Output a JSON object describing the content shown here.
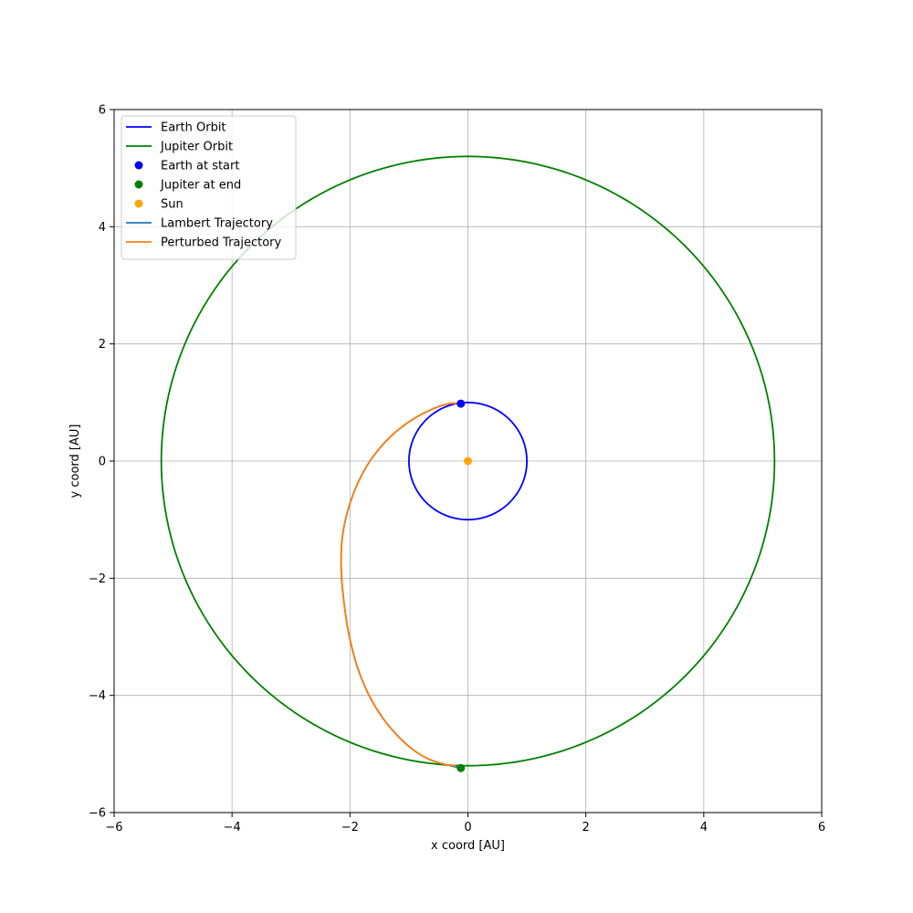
{
  "chart_data": {
    "type": "line",
    "xlabel": "x coord [AU]",
    "ylabel": "y coord [AU]",
    "xlim": [
      -6,
      6
    ],
    "ylim": [
      -6,
      6
    ],
    "grid": true,
    "legend_position": "top-left",
    "x_ticks": [
      -6,
      -4,
      -2,
      0,
      2,
      4,
      6
    ],
    "y_ticks": [
      -6,
      -4,
      -2,
      0,
      2,
      4,
      6
    ],
    "x_tick_labels": [
      "−6",
      "−4",
      "−2",
      "0",
      "2",
      "4",
      "6"
    ],
    "y_tick_labels": [
      "−6",
      "−4",
      "−2",
      "0",
      "2",
      "4",
      "6"
    ],
    "series": [
      {
        "name": "Earth Orbit",
        "kind": "line",
        "color": "#0000ff",
        "shape": "circle",
        "center": [
          0,
          0
        ],
        "radius": 1.0
      },
      {
        "name": "Jupiter Orbit",
        "kind": "line",
        "color": "#008000",
        "shape": "circle",
        "center": [
          0,
          0
        ],
        "radius": 5.2
      },
      {
        "name": "Earth at start",
        "kind": "point",
        "color": "#0000ff",
        "x": -0.12,
        "y": 0.98
      },
      {
        "name": "Jupiter at end",
        "kind": "point",
        "color": "#008000",
        "x": -0.12,
        "y": -5.24
      },
      {
        "name": "Sun",
        "kind": "point",
        "color": "#ffa500",
        "x": 0,
        "y": 0
      },
      {
        "name": "Lambert Trajectory",
        "kind": "line",
        "color": "#1f77b4",
        "x": [
          -0.12,
          -0.32,
          -0.62,
          -0.97,
          -1.31,
          -1.62,
          -1.86,
          -2.03,
          -2.13,
          -2.15,
          -2.12,
          -2.03,
          -1.88,
          -1.7,
          -1.47,
          -1.21,
          -0.94,
          -0.66,
          -0.38,
          -0.12
        ],
        "y": [
          0.98,
          0.98,
          0.88,
          0.69,
          0.42,
          0.06,
          -0.36,
          -0.82,
          -1.3,
          -1.78,
          -2.25,
          -2.9,
          -3.5,
          -3.95,
          -4.35,
          -4.67,
          -4.92,
          -5.09,
          -5.18,
          -5.24
        ]
      },
      {
        "name": "Perturbed Trajectory",
        "kind": "line",
        "color": "#ff7f0e",
        "x": [
          -0.12,
          -0.32,
          -0.62,
          -0.97,
          -1.31,
          -1.62,
          -1.86,
          -2.03,
          -2.13,
          -2.15,
          -2.12,
          -2.03,
          -1.88,
          -1.7,
          -1.47,
          -1.21,
          -0.94,
          -0.66,
          -0.38,
          -0.2
        ],
        "y": [
          0.98,
          0.98,
          0.88,
          0.69,
          0.42,
          0.06,
          -0.36,
          -0.82,
          -1.3,
          -1.78,
          -2.25,
          -2.9,
          -3.5,
          -3.95,
          -4.35,
          -4.67,
          -4.92,
          -5.09,
          -5.18,
          -5.2
        ]
      }
    ]
  }
}
